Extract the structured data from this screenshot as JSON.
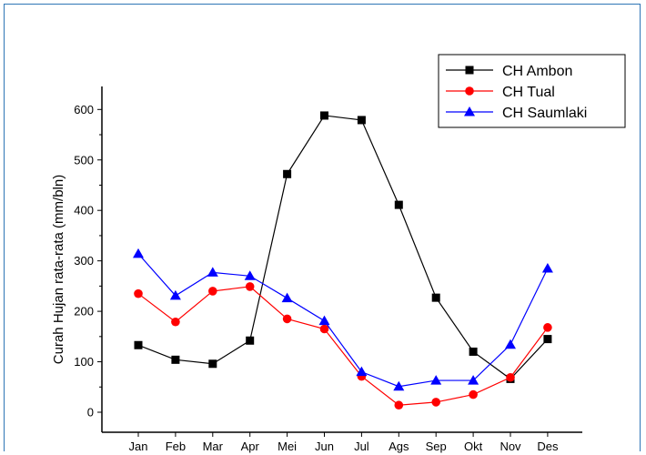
{
  "chart_data": {
    "type": "line",
    "categories": [
      "Jan",
      "Feb",
      "Mar",
      "Apr",
      "Mei",
      "Jun",
      "Jul",
      "Ags",
      "Sep",
      "Okt",
      "Nov",
      "Des"
    ],
    "ylabel": "Curah Hujan rata-rata (mm/bln)",
    "xlabel": "",
    "ylim": [
      -20,
      650
    ],
    "yticks": [
      0,
      100,
      200,
      300,
      400,
      500,
      600
    ],
    "grid": false,
    "legend_position": "top-right",
    "series": [
      {
        "name": "CH Ambon",
        "color": "#000000",
        "marker": "square",
        "values": [
          133,
          104,
          96,
          142,
          472,
          588,
          579,
          411,
          227,
          120,
          66,
          145
        ]
      },
      {
        "name": "CH Tual",
        "color": "#ff0000",
        "marker": "circle",
        "values": [
          235,
          179,
          240,
          249,
          185,
          165,
          71,
          14,
          20,
          35,
          69,
          168
        ]
      },
      {
        "name": "CH Saumlaki",
        "color": "#0000ff",
        "marker": "triangle",
        "values": [
          314,
          231,
          277,
          270,
          226,
          181,
          80,
          51,
          63,
          63,
          134,
          285
        ]
      }
    ]
  }
}
